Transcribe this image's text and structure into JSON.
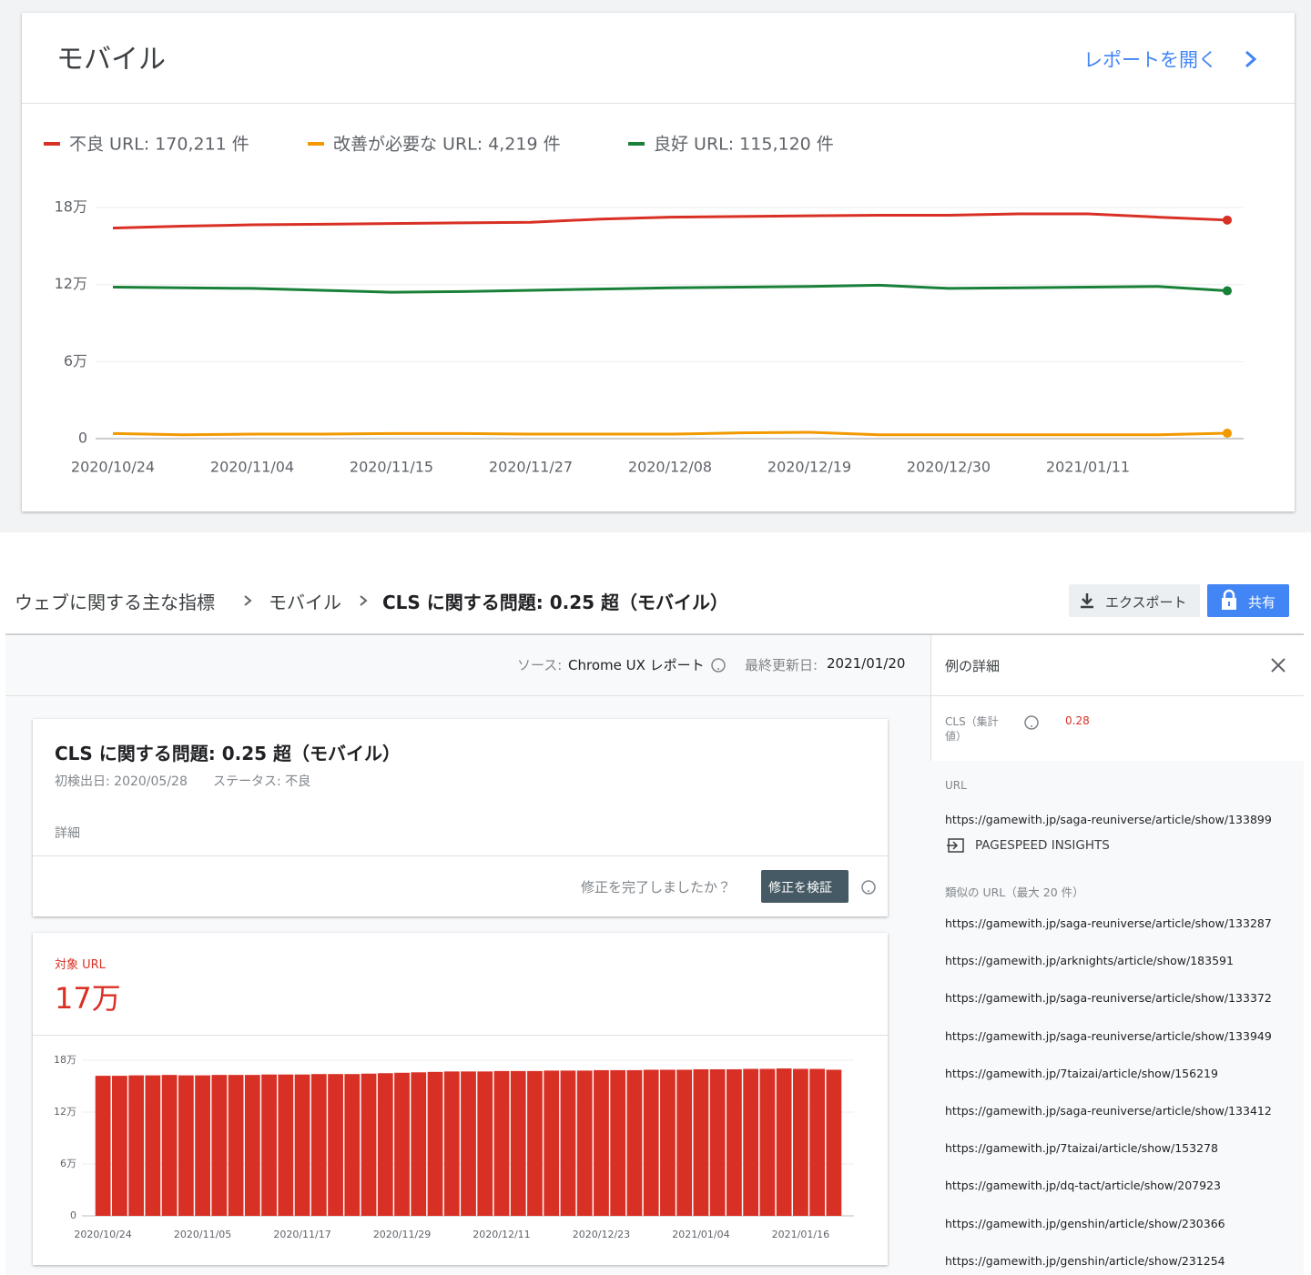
{
  "header": {
    "title": "モバイル",
    "open_report": "レポートを開く"
  },
  "chart_data": [
    {
      "type": "line",
      "categories": [
        "2020/10/24",
        null,
        "2020/11/04",
        null,
        "2020/11/15",
        null,
        "2020/11/27",
        null,
        "2020/12/08",
        null,
        "2020/12/19",
        null,
        "2020/12/30",
        null,
        "2021/01/11",
        null,
        null
      ],
      "series": [
        {
          "name": "不良 URL: 170,211 件",
          "color": "#d93025",
          "values": [
            164000,
            165500,
            166500,
            167000,
            167500,
            168000,
            168500,
            171000,
            172500,
            173000,
            173500,
            174000,
            174000,
            175000,
            175000,
            172500,
            170211
          ]
        },
        {
          "name": "改善が必要な URL: 4,219 件",
          "color": "#f29900",
          "values": [
            4000,
            3000,
            3500,
            3500,
            4000,
            4000,
            3500,
            3500,
            3500,
            4500,
            5000,
            3000,
            3000,
            3000,
            3000,
            3000,
            4219
          ]
        },
        {
          "name": "良好 URL: 115,120 件",
          "color": "#188038",
          "values": [
            118000,
            117500,
            117000,
            115500,
            114000,
            114500,
            115500,
            116500,
            117500,
            118000,
            118500,
            119500,
            117000,
            117500,
            118000,
            118500,
            115120
          ]
        }
      ],
      "ylim": [
        0,
        180000
      ],
      "yticks": [
        {
          "value": 0,
          "label": "0"
        },
        {
          "value": 60000,
          "label": "6万"
        },
        {
          "value": 120000,
          "label": "12万"
        },
        {
          "value": 180000,
          "label": "18万"
        }
      ],
      "grid": true
    },
    {
      "type": "bar",
      "categories": [
        "2020/10/24",
        null,
        null,
        null,
        null,
        null,
        "2020/11/05",
        null,
        null,
        null,
        null,
        null,
        "2020/11/17",
        null,
        null,
        null,
        null,
        null,
        "2020/11/29",
        null,
        null,
        null,
        null,
        null,
        "2020/12/11",
        null,
        null,
        null,
        null,
        null,
        "2020/12/23",
        null,
        null,
        null,
        null,
        null,
        "2021/01/04",
        null,
        null,
        null,
        null,
        null,
        "2021/01/16",
        null,
        null
      ],
      "values": [
        162000,
        162000,
        162500,
        162500,
        163000,
        162500,
        162500,
        163000,
        163000,
        163000,
        163500,
        163500,
        163500,
        164000,
        164000,
        164000,
        164500,
        165000,
        165500,
        166000,
        166500,
        167000,
        167000,
        167000,
        167500,
        167500,
        167500,
        168000,
        168000,
        168000,
        168500,
        168500,
        168500,
        169000,
        169000,
        169000,
        169500,
        169500,
        169500,
        170000,
        170000,
        170500,
        170000,
        170000,
        169000
      ],
      "color": "#d93025",
      "ylim": [
        0,
        180000
      ],
      "yticks": [
        {
          "value": 0,
          "label": "0"
        },
        {
          "value": 60000,
          "label": "6万"
        },
        {
          "value": 120000,
          "label": "12万"
        },
        {
          "value": 180000,
          "label": "18万"
        }
      ],
      "grid": true
    }
  ],
  "breadcrumb": [
    "ウェブに関する主な指標",
    "モバイル",
    "CLS に関する問題: 0.25 超（モバイル）"
  ],
  "toolbar": {
    "export": "エクスポート",
    "share": "共有"
  },
  "source": {
    "label": "ソース:",
    "value": "Chrome UX レポート",
    "updated_label": "最終更新日:",
    "updated_value": "2021/01/20"
  },
  "issue": {
    "title": "CLS に関する問題: 0.25 超（モバイル）",
    "first_detected": "初検出日: 2020/05/28",
    "status": "ステータス: 不良",
    "details": "詳細",
    "fix_prompt": "修正を完了しましたか？",
    "validate": "修正を検証"
  },
  "affected": {
    "label": "対象 URL",
    "value": "17万"
  },
  "panel": {
    "title": "例の詳細",
    "metric_label": "CLS（集計値）",
    "metric_value": "0.28",
    "url_label": "URL",
    "url": "https://gamewith.jp/saga-reuniverse/article/show/133899",
    "psi": "PAGESPEED INSIGHTS",
    "similar_label": "類似の URL（最大 20 件）",
    "similar_urls": [
      "https://gamewith.jp/saga-reuniverse/article/show/133287",
      "https://gamewith.jp/arknights/article/show/183591",
      "https://gamewith.jp/saga-reuniverse/article/show/133372",
      "https://gamewith.jp/saga-reuniverse/article/show/133949",
      "https://gamewith.jp/7taizai/article/show/156219",
      "https://gamewith.jp/saga-reuniverse/article/show/133412",
      "https://gamewith.jp/7taizai/article/show/153278",
      "https://gamewith.jp/dq-tact/article/show/207923",
      "https://gamewith.jp/genshin/article/show/230366",
      "https://gamewith.jp/genshin/article/show/231254"
    ]
  }
}
